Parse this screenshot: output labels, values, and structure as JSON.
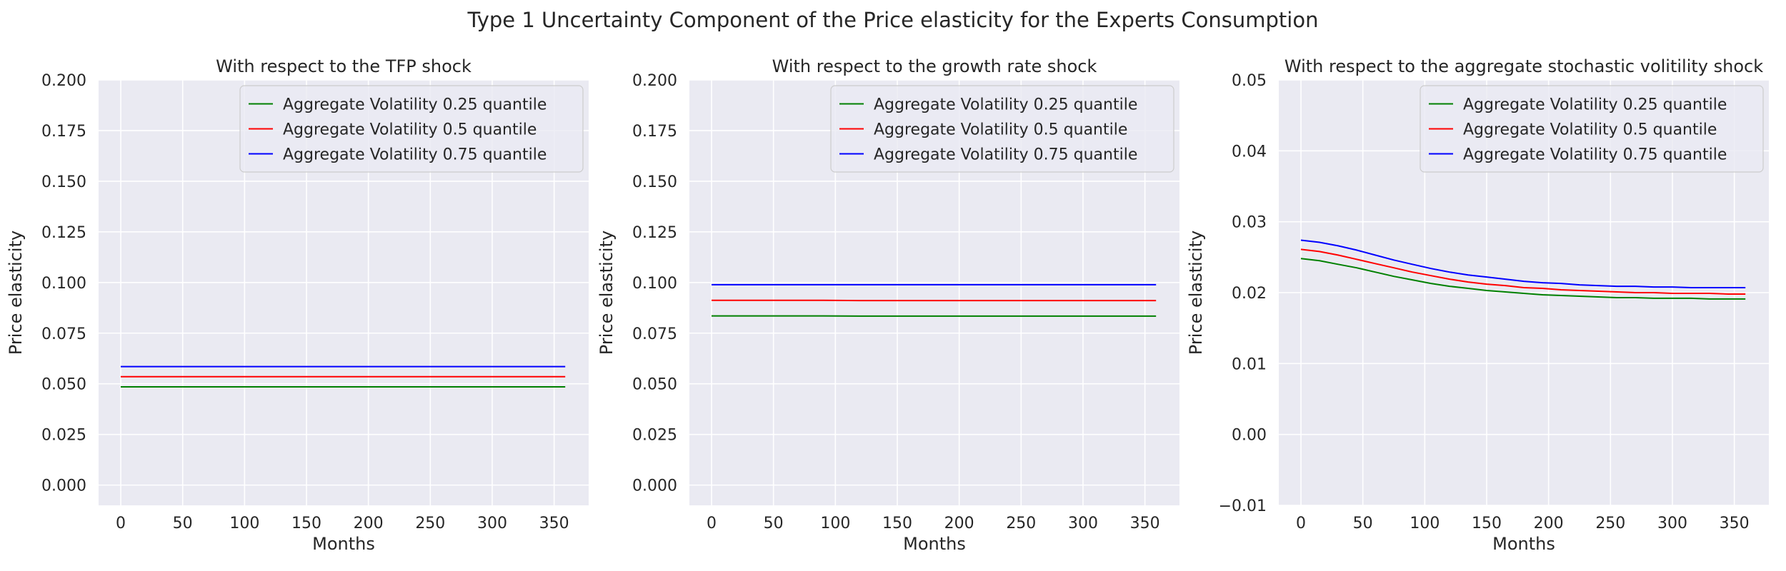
{
  "figure": {
    "title": "Type 1 Uncertainty Component of the Price elasticity for the Experts Consumption"
  },
  "chart_data": [
    {
      "type": "line",
      "title": "With respect to the TFP shock",
      "xlabel": "Months",
      "ylabel": "Price elasticity",
      "xlim": [
        -17.9,
        377.9
      ],
      "ylim": [
        -0.01,
        0.2
      ],
      "xticks": [
        0,
        50,
        100,
        150,
        200,
        250,
        300,
        350
      ],
      "yticks": [
        0.0,
        0.025,
        0.05,
        0.075,
        0.1,
        0.125,
        0.15,
        0.175,
        0.2
      ],
      "ytick_labels": [
        "0.000",
        "0.025",
        "0.050",
        "0.075",
        "0.100",
        "0.125",
        "0.150",
        "0.175",
        "0.200"
      ],
      "grid": true,
      "legend": "top-right",
      "x": [
        0,
        30,
        60,
        90,
        120,
        150,
        180,
        210,
        240,
        270,
        300,
        330,
        359
      ],
      "series": [
        {
          "name": "Aggregate Volatility 0.25 quantile",
          "color": "#008000",
          "values": [
            0.0485,
            0.0485,
            0.0485,
            0.0485,
            0.0485,
            0.0485,
            0.0485,
            0.0485,
            0.0485,
            0.0485,
            0.0485,
            0.0485,
            0.0485
          ]
        },
        {
          "name": "Aggregate Volatility 0.5 quantile",
          "color": "#ff0000",
          "values": [
            0.0535,
            0.0535,
            0.0535,
            0.0535,
            0.0535,
            0.0535,
            0.0535,
            0.0535,
            0.0535,
            0.0535,
            0.0535,
            0.0535,
            0.0535
          ]
        },
        {
          "name": "Aggregate Volatility 0.75 quantile",
          "color": "#0000ff",
          "values": [
            0.0585,
            0.0585,
            0.0585,
            0.0585,
            0.0585,
            0.0585,
            0.0585,
            0.0585,
            0.0585,
            0.0585,
            0.0585,
            0.0585,
            0.0585
          ]
        }
      ]
    },
    {
      "type": "line",
      "title": "With respect to the growth rate shock",
      "xlabel": "Months",
      "ylabel": "Price elasticity",
      "xlim": [
        -17.9,
        377.9
      ],
      "ylim": [
        -0.01,
        0.2
      ],
      "xticks": [
        0,
        50,
        100,
        150,
        200,
        250,
        300,
        350
      ],
      "yticks": [
        0.0,
        0.025,
        0.05,
        0.075,
        0.1,
        0.125,
        0.15,
        0.175,
        0.2
      ],
      "ytick_labels": [
        "0.000",
        "0.025",
        "0.050",
        "0.075",
        "0.100",
        "0.125",
        "0.150",
        "0.175",
        "0.200"
      ],
      "grid": true,
      "legend": "top-right",
      "x": [
        0,
        30,
        60,
        90,
        120,
        150,
        180,
        210,
        240,
        270,
        300,
        330,
        359
      ],
      "series": [
        {
          "name": "Aggregate Volatility 0.25 quantile",
          "color": "#008000",
          "values": [
            0.0835,
            0.0835,
            0.0835,
            0.0835,
            0.0834,
            0.0834,
            0.0834,
            0.0834,
            0.0834,
            0.0834,
            0.0834,
            0.0834,
            0.0834
          ]
        },
        {
          "name": "Aggregate Volatility 0.5 quantile",
          "color": "#ff0000",
          "values": [
            0.0912,
            0.0912,
            0.0912,
            0.0912,
            0.0911,
            0.0911,
            0.0911,
            0.0911,
            0.0911,
            0.0911,
            0.0911,
            0.0911,
            0.0911
          ]
        },
        {
          "name": "Aggregate Volatility 0.75 quantile",
          "color": "#0000ff",
          "values": [
            0.0989,
            0.0989,
            0.0989,
            0.0989,
            0.0989,
            0.0989,
            0.0989,
            0.0989,
            0.0989,
            0.0989,
            0.0989,
            0.0989,
            0.0989
          ]
        }
      ]
    },
    {
      "type": "line",
      "title": "With respect to the aggregate stochastic volitility shock",
      "xlabel": "Months",
      "ylabel": "Price elasticity",
      "xlim": [
        -17.9,
        377.9
      ],
      "ylim": [
        -0.01,
        0.05
      ],
      "xticks": [
        0,
        50,
        100,
        150,
        200,
        250,
        300,
        350
      ],
      "yticks": [
        -0.01,
        0.0,
        0.01,
        0.02,
        0.03,
        0.04,
        0.05
      ],
      "ytick_labels": [
        "−0.01",
        "0.00",
        "0.01",
        "0.02",
        "0.03",
        "0.04",
        "0.05"
      ],
      "grid": true,
      "legend": "top-right",
      "x": [
        0,
        15,
        30,
        45,
        60,
        75,
        90,
        105,
        120,
        135,
        150,
        165,
        180,
        195,
        210,
        225,
        240,
        255,
        270,
        285,
        300,
        315,
        330,
        345,
        359
      ],
      "series": [
        {
          "name": "Aggregate Volatility 0.25 quantile",
          "color": "#008000",
          "values": [
            0.0248,
            0.0245,
            0.024,
            0.0235,
            0.0229,
            0.0223,
            0.0218,
            0.0213,
            0.0209,
            0.0206,
            0.0203,
            0.0201,
            0.0199,
            0.0197,
            0.0196,
            0.0195,
            0.0194,
            0.0193,
            0.0193,
            0.0192,
            0.0192,
            0.0192,
            0.0191,
            0.0191,
            0.0191
          ]
        },
        {
          "name": "Aggregate Volatility 0.5 quantile",
          "color": "#ff0000",
          "values": [
            0.0261,
            0.0258,
            0.0253,
            0.0247,
            0.0241,
            0.0235,
            0.0229,
            0.0224,
            0.0219,
            0.0215,
            0.0212,
            0.021,
            0.0207,
            0.0206,
            0.0204,
            0.0203,
            0.0202,
            0.0201,
            0.02,
            0.02,
            0.0199,
            0.0199,
            0.0199,
            0.0198,
            0.0198
          ]
        },
        {
          "name": "Aggregate Volatility 0.75 quantile",
          "color": "#0000ff",
          "values": [
            0.0274,
            0.0271,
            0.0266,
            0.026,
            0.0253,
            0.0246,
            0.024,
            0.0234,
            0.0229,
            0.0225,
            0.0222,
            0.0219,
            0.0216,
            0.0214,
            0.0213,
            0.0211,
            0.021,
            0.0209,
            0.0209,
            0.0208,
            0.0208,
            0.0207,
            0.0207,
            0.0207,
            0.0207
          ]
        }
      ]
    }
  ]
}
